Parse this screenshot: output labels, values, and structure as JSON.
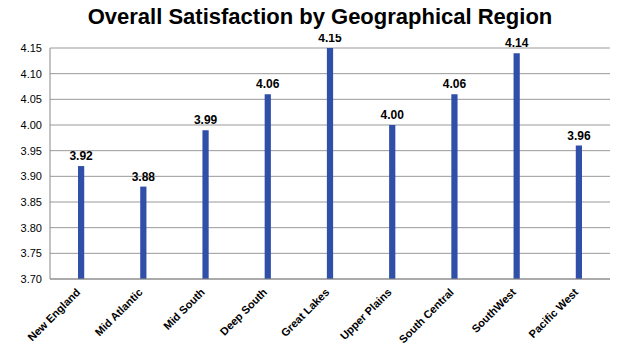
{
  "chart_data": {
    "type": "bar",
    "title": "Overall Satisfaction by Geographical Region",
    "categories": [
      "New England",
      "Mid Atlantic",
      "Mid South",
      "Deep South",
      "Great Lakes",
      "Upper Plains",
      "South Central",
      "SouthWest",
      "Pacific  West"
    ],
    "values": [
      3.92,
      3.88,
      3.99,
      4.06,
      4.15,
      4.0,
      4.06,
      4.14,
      3.96
    ],
    "value_labels": [
      "3.92",
      "3.88",
      "3.99",
      "4.06",
      "4.15",
      "4.00",
      "4.06",
      "4.14",
      "3.96"
    ],
    "color": "#2f4fa8",
    "ylim": [
      3.7,
      4.15
    ],
    "yticks": [
      {
        "value": 3.7,
        "label": "3.70"
      },
      3.75,
      {
        "value": 3.8,
        "label": "3.80"
      },
      3.85,
      {
        "value": 3.9,
        "label": "3.90"
      },
      3.95,
      {
        "value": 4.0,
        "label": "4.00"
      },
      4.05,
      {
        "value": 4.1,
        "label": "4.10"
      },
      4.15
    ],
    "grid": true,
    "data_labels": true
  }
}
